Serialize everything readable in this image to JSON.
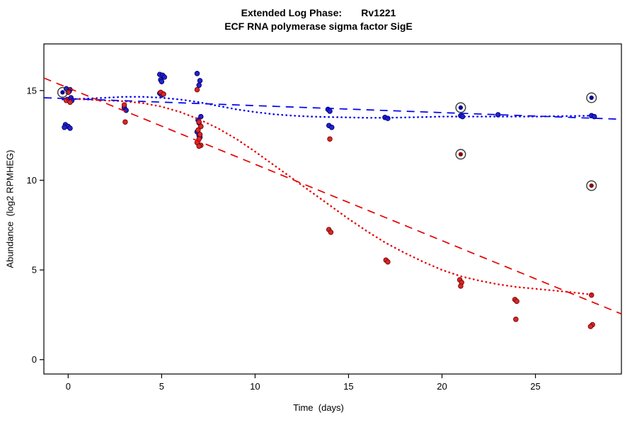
{
  "chart_data": {
    "type": "scatter",
    "title": "Extended Log Phase:       Rv1221",
    "subtitle": "ECF RNA polymerase sigma factor SigE",
    "xlabel": "Time  (days)",
    "ylabel": "Abundance  (log2 RPMHEG)",
    "x_ticks": [
      0,
      5,
      10,
      15,
      20,
      25
    ],
    "y_ticks": [
      0,
      5,
      10,
      15
    ],
    "xlim": [
      -1.3,
      29.6
    ],
    "ylim": [
      -0.8,
      17.6
    ],
    "grid": false,
    "legend": "none",
    "colors": {
      "blue_point": "#2323cd",
      "blue_edge": "#00006b",
      "blue_dark": "#00008b",
      "red_point": "#d62828",
      "red_edge": "#7a0000",
      "red_dark": "#8b0000",
      "line_blue": "#0000ee",
      "line_red": "#e60000",
      "ring": "#3a3a3a",
      "axis": "#000000"
    },
    "series": [
      {
        "name": "blue-points",
        "color": "#2323cd",
        "edge": "#00006b",
        "points": [
          [
            -0.1,
            15.1
          ],
          [
            0.1,
            15.05
          ],
          [
            0.05,
            14.95
          ],
          [
            0.15,
            14.6
          ],
          [
            -0.05,
            14.5
          ],
          [
            0.2,
            14.45
          ],
          [
            -0.15,
            13.1
          ],
          [
            0.0,
            13.0
          ],
          [
            -0.2,
            12.95
          ],
          [
            0.1,
            12.9
          ],
          [
            3.0,
            14.05
          ],
          [
            3.1,
            13.9
          ],
          [
            4.9,
            15.9
          ],
          [
            5.05,
            15.85
          ],
          [
            5.15,
            15.75
          ],
          [
            4.95,
            15.6
          ],
          [
            5.0,
            15.5
          ],
          [
            4.9,
            14.85
          ],
          [
            5.1,
            14.8
          ],
          [
            5.0,
            14.75
          ],
          [
            6.9,
            15.95
          ],
          [
            7.05,
            15.55
          ],
          [
            7.0,
            15.3
          ],
          [
            7.1,
            13.55
          ],
          [
            6.95,
            13.35
          ],
          [
            7.0,
            13.2
          ],
          [
            7.1,
            13.0
          ],
          [
            6.9,
            12.7
          ],
          [
            7.0,
            12.5
          ],
          [
            7.05,
            12.4
          ],
          [
            13.9,
            13.95
          ],
          [
            14.0,
            13.85
          ],
          [
            13.95,
            13.05
          ],
          [
            14.1,
            12.95
          ],
          [
            16.95,
            13.5
          ],
          [
            17.1,
            13.45
          ],
          [
            21.0,
            13.6
          ],
          [
            21.1,
            13.55
          ],
          [
            23.0,
            13.65
          ],
          [
            28.0,
            13.6
          ],
          [
            28.15,
            13.55
          ]
        ]
      },
      {
        "name": "red-points",
        "color": "#d62828",
        "edge": "#7a0000",
        "points": [
          [
            0.0,
            14.9
          ],
          [
            -0.1,
            14.45
          ],
          [
            0.1,
            14.35
          ],
          [
            3.0,
            14.2
          ],
          [
            3.05,
            13.25
          ],
          [
            4.95,
            14.9
          ],
          [
            5.1,
            14.8
          ],
          [
            6.9,
            15.05
          ],
          [
            7.0,
            13.25
          ],
          [
            7.1,
            13.0
          ],
          [
            6.95,
            12.8
          ],
          [
            7.05,
            12.55
          ],
          [
            7.0,
            12.3
          ],
          [
            6.9,
            12.1
          ],
          [
            7.1,
            11.95
          ],
          [
            7.0,
            11.9
          ],
          [
            14.0,
            12.3
          ],
          [
            13.95,
            7.25
          ],
          [
            14.05,
            7.1
          ],
          [
            17.0,
            5.55
          ],
          [
            17.1,
            5.45
          ],
          [
            20.95,
            4.45
          ],
          [
            21.05,
            4.3
          ],
          [
            21.0,
            4.1
          ],
          [
            23.9,
            3.35
          ],
          [
            24.0,
            3.25
          ],
          [
            23.95,
            2.25
          ],
          [
            28.0,
            3.6
          ],
          [
            28.05,
            1.95
          ],
          [
            27.95,
            1.85
          ]
        ]
      }
    ],
    "circled_points": [
      {
        "x": -0.3,
        "y": 14.9,
        "series": "blue"
      },
      {
        "x": 21.0,
        "y": 14.05,
        "series": "blue"
      },
      {
        "x": 21.0,
        "y": 11.45,
        "series": "red"
      },
      {
        "x": 28.0,
        "y": 14.6,
        "series": "blue"
      },
      {
        "x": 28.0,
        "y": 9.7,
        "series": "red"
      }
    ],
    "trend_lines": [
      {
        "name": "blue-linear-fit",
        "style": "dashed",
        "color": "#0000ee",
        "from": [
          -1.3,
          14.6
        ],
        "to": [
          29.6,
          13.4
        ]
      },
      {
        "name": "red-linear-fit",
        "style": "dashed",
        "color": "#e60000",
        "from": [
          -1.3,
          15.7
        ],
        "to": [
          29.6,
          2.55
        ]
      }
    ],
    "loess_curves": [
      {
        "name": "blue-loess-fit",
        "style": "dotted",
        "color": "#0000ee",
        "points": [
          [
            -0.3,
            14.5
          ],
          [
            1,
            14.55
          ],
          [
            2,
            14.6
          ],
          [
            3,
            14.65
          ],
          [
            4,
            14.65
          ],
          [
            5,
            14.6
          ],
          [
            6,
            14.5
          ],
          [
            7,
            14.35
          ],
          [
            8,
            14.15
          ],
          [
            9,
            13.95
          ],
          [
            10,
            13.8
          ],
          [
            11,
            13.68
          ],
          [
            12,
            13.6
          ],
          [
            13,
            13.55
          ],
          [
            14,
            13.52
          ],
          [
            15,
            13.5
          ],
          [
            16,
            13.48
          ],
          [
            17,
            13.48
          ],
          [
            18,
            13.5
          ],
          [
            19,
            13.52
          ],
          [
            20,
            13.55
          ],
          [
            21,
            13.55
          ],
          [
            22,
            13.55
          ],
          [
            23,
            13.55
          ],
          [
            24,
            13.55
          ],
          [
            25,
            13.55
          ],
          [
            26,
            13.57
          ],
          [
            27,
            13.58
          ],
          [
            28.2,
            13.6
          ]
        ]
      },
      {
        "name": "red-loess-fit",
        "style": "dotted",
        "color": "#e60000",
        "points": [
          [
            -0.3,
            14.55
          ],
          [
            1,
            14.5
          ],
          [
            2,
            14.45
          ],
          [
            3,
            14.4
          ],
          [
            4,
            14.3
          ],
          [
            5,
            14.1
          ],
          [
            6,
            13.8
          ],
          [
            7,
            13.4
          ],
          [
            8,
            12.9
          ],
          [
            9,
            12.3
          ],
          [
            10,
            11.6
          ],
          [
            11,
            10.85
          ],
          [
            12,
            10.1
          ],
          [
            13,
            9.35
          ],
          [
            14,
            8.6
          ],
          [
            15,
            7.85
          ],
          [
            16,
            7.15
          ],
          [
            17,
            6.5
          ],
          [
            18,
            5.95
          ],
          [
            19,
            5.45
          ],
          [
            20,
            5.0
          ],
          [
            21,
            4.65
          ],
          [
            22,
            4.4
          ],
          [
            23,
            4.2
          ],
          [
            24,
            4.05
          ],
          [
            25,
            3.95
          ],
          [
            26,
            3.85
          ],
          [
            27,
            3.75
          ],
          [
            28.2,
            3.6
          ]
        ]
      }
    ]
  }
}
